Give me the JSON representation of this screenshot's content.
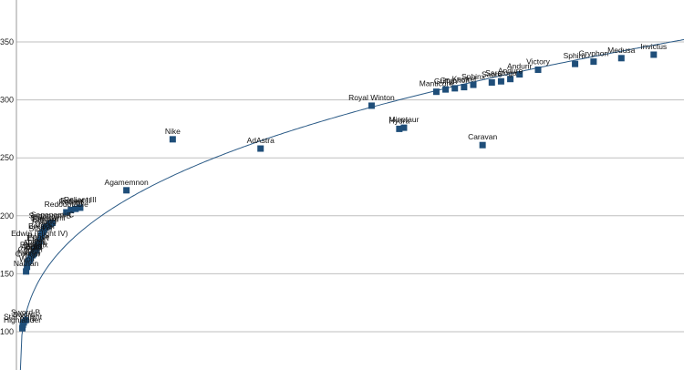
{
  "chart_data": {
    "type": "scatter",
    "title": "",
    "xlabel": "",
    "ylabel": "",
    "ylim": [
      80,
      370
    ],
    "xlim": [
      0,
      160
    ],
    "yticks": [
      100,
      150,
      200,
      250,
      300,
      350
    ],
    "grid": true,
    "legend": "none",
    "colors": {
      "marker": "#1f4e79",
      "trendline": "#2a5a86",
      "grid": "#bfbfbf"
    },
    "trendline": "logarithmic",
    "points": [
      {
        "label": "Highlander",
        "x": 0.5,
        "y": 103
      },
      {
        "label": "Star Knight",
        "x": 0.6,
        "y": 106
      },
      {
        "label": "Sword",
        "x": 0.8,
        "y": 108
      },
      {
        "label": "Sword B",
        "x": 1.2,
        "y": 110
      },
      {
        "label": "Nathan",
        "x": 1.3,
        "y": 152
      },
      {
        "label": "Wolf",
        "x": 1.5,
        "y": 156
      },
      {
        "label": "Condor",
        "x": 1.7,
        "y": 160
      },
      {
        "label": "Falcon",
        "x": 1.9,
        "y": 161
      },
      {
        "label": "100",
        "x": 2.1,
        "y": 162
      },
      {
        "label": "Courier",
        "x": 2.3,
        "y": 164
      },
      {
        "label": "Apollo",
        "x": 2.5,
        "y": 166
      },
      {
        "label": "Rigel",
        "x": 2.7,
        "y": 166
      },
      {
        "label": "Ares",
        "x": 2.9,
        "y": 167
      },
      {
        "label": "Phoenix",
        "x": 3.0,
        "y": 168
      },
      {
        "label": "Avalon",
        "x": 3.2,
        "y": 170
      },
      {
        "label": "Talon",
        "x": 3.4,
        "y": 170
      },
      {
        "label": "Fleet",
        "x": 3.5,
        "y": 172
      },
      {
        "label": "Escort",
        "x": 3.8,
        "y": 174
      },
      {
        "label": "Prince",
        "x": 4.0,
        "y": 175
      },
      {
        "label": "Edwin (Flight IV)",
        "x": 4.2,
        "y": 178
      },
      {
        "label": "Stalker",
        "x": 4.5,
        "y": 182
      },
      {
        "label": "Breaker",
        "x": 4.7,
        "y": 184
      },
      {
        "label": "Dark",
        "x": 5.0,
        "y": 186
      },
      {
        "label": "Roland",
        "x": 5.2,
        "y": 188
      },
      {
        "label": "Edward",
        "x": 5.5,
        "y": 190
      },
      {
        "label": "Saganami",
        "x": 6.0,
        "y": 191
      },
      {
        "label": "Saganami-B",
        "x": 6.5,
        "y": 193
      },
      {
        "label": "Saganami-C",
        "x": 7.0,
        "y": 194
      },
      {
        "label": "Redoubtable",
        "x": 10,
        "y": 203
      },
      {
        "label": "Reliant",
        "x": 11,
        "y": 205
      },
      {
        "label": "Reliant II",
        "x": 12,
        "y": 206
      },
      {
        "label": "Reliant III",
        "x": 13,
        "y": 207
      },
      {
        "label": "Agamemnon",
        "x": 23,
        "y": 222
      },
      {
        "label": "Nike",
        "x": 33,
        "y": 266
      },
      {
        "label": "AdAstra",
        "x": 52,
        "y": 258
      },
      {
        "label": "Royal Winton",
        "x": 76,
        "y": 295
      },
      {
        "label": "Hydra",
        "x": 82,
        "y": 275
      },
      {
        "label": "Minotaur",
        "x": 83,
        "y": 276
      },
      {
        "label": "Manticore",
        "x": 90,
        "y": 307
      },
      {
        "label": "Griffon",
        "x": 92,
        "y": 309
      },
      {
        "label": "Gryphon",
        "x": 94,
        "y": 310
      },
      {
        "label": "Kestrel",
        "x": 96,
        "y": 311
      },
      {
        "label": "Sphinx",
        "x": 98,
        "y": 313
      },
      {
        "label": "Caravan",
        "x": 100,
        "y": 261
      },
      {
        "label": "Sabre",
        "x": 102,
        "y": 315
      },
      {
        "label": "Saratoga",
        "x": 104,
        "y": 316
      },
      {
        "label": "Andure",
        "x": 106,
        "y": 318
      },
      {
        "label": "Andurir",
        "x": 108,
        "y": 322
      },
      {
        "label": "Victory",
        "x": 112,
        "y": 326
      },
      {
        "label": "Sphinx",
        "x": 120,
        "y": 331
      },
      {
        "label": "Gryphon",
        "x": 124,
        "y": 333
      },
      {
        "label": "Medusa",
        "x": 130,
        "y": 336
      },
      {
        "label": "Invictus",
        "x": 137,
        "y": 339
      }
    ]
  }
}
